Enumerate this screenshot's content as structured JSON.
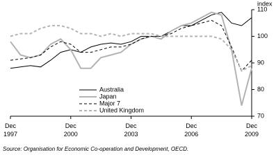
{
  "chart_data": {
    "type": "line",
    "y_unit": "index",
    "source": "Source: Organisation for Economic Co-operation and Development, OECD.",
    "categories": [
      "Dec 1997",
      null,
      null,
      null,
      null,
      null,
      "Dec 2000",
      null,
      null,
      null,
      null,
      null,
      "Dec 2003",
      null,
      null,
      null,
      null,
      null,
      "Dec 2006",
      null,
      null,
      null,
      null,
      null,
      "Dec 2009"
    ],
    "ylim": [
      70,
      110
    ],
    "yticks": [
      70,
      80,
      90,
      100,
      110
    ],
    "series": [
      {
        "name": "Australia",
        "color": "#000000",
        "dash": false,
        "values": [
          88,
          88.5,
          89,
          88.5,
          91,
          94,
          95,
          94,
          96,
          97,
          97.5,
          97,
          98,
          100,
          100,
          100,
          102,
          104,
          104,
          106,
          108,
          109,
          105,
          104,
          107
        ]
      },
      {
        "name": "Japan",
        "color": "#b3b3b3",
        "dash": false,
        "values": [
          98,
          93,
          92,
          93,
          97,
          99,
          95,
          88,
          88,
          92,
          93,
          94,
          97,
          99,
          100,
          99,
          102,
          104,
          105,
          107,
          109,
          108,
          95,
          74,
          88
        ]
      },
      {
        "name": "Major 7",
        "color": "#000000",
        "dash": true,
        "values": [
          91,
          91.5,
          92,
          93,
          96,
          98,
          97,
          94,
          94,
          95,
          96,
          96,
          97,
          99,
          100,
          100,
          101,
          103,
          104,
          105,
          106,
          104,
          96,
          87,
          91
        ]
      },
      {
        "name": "United Kingdom",
        "color": "#b3b3b3",
        "dash": true,
        "values": [
          100,
          101,
          101,
          103,
          104,
          104,
          103,
          101,
          101,
          100,
          101,
          100,
          101,
          101,
          101,
          100,
          100,
          100,
          100,
          100,
          100,
          99,
          95,
          87,
          89
        ]
      }
    ]
  }
}
